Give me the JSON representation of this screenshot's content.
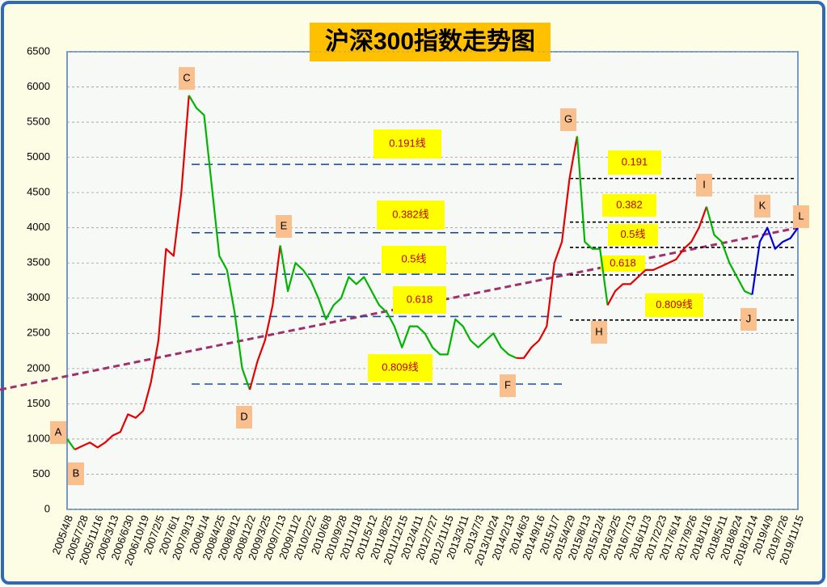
{
  "chart_data": {
    "type": "line",
    "title": "沪深300指数走势图",
    "ylim": [
      0,
      6500
    ],
    "yticks": [
      0,
      500,
      1000,
      1500,
      2000,
      2500,
      3000,
      3500,
      4000,
      4500,
      5000,
      5500,
      6000,
      6500
    ],
    "grid": true,
    "categories": [
      "2005/4/8",
      null,
      "2005/7/28",
      null,
      "2005/11/16",
      null,
      "2006/3/13",
      null,
      "2006/6/30",
      null,
      "2006/10/19",
      null,
      "2007/2/5",
      null,
      "2007/6/1",
      null,
      "2007/9/13",
      null,
      "2008/1/4",
      null,
      "2008/4/25",
      null,
      "2008/8/12",
      null,
      "2008/12/2",
      null,
      "2009/3/25",
      null,
      "2009/7/13",
      null,
      "2009/11/2",
      null,
      "2010/2/22",
      null,
      "2010/6/8",
      null,
      "2010/9/28",
      null,
      "2011/1/18",
      null,
      "2011/5/12",
      null,
      "2011/8/25",
      null,
      "2011/12/15",
      null,
      "2012/4/11",
      null,
      "2012/7/27",
      null,
      "2012/11/15",
      null,
      "2013/3/11",
      null,
      "2013/7/3",
      null,
      "2013/10/24",
      null,
      "2014/2/13",
      null,
      "2014/6/3",
      null,
      "2014/9/16",
      null,
      "2015/1/7",
      null,
      "2015/4/29",
      null,
      "2015/8/13",
      null,
      "2015/12/4",
      null,
      "2016/3/25",
      null,
      "2016/7/13",
      null,
      "2016/11/3",
      null,
      "2017/2/23",
      null,
      "2017/6/14",
      null,
      "2017/9/26",
      null,
      "2018/1/16",
      null,
      "2018/5/11",
      null,
      "2018/8/24",
      null,
      "2018/12/14",
      null,
      "2019/4/9",
      null,
      "2019/7/26",
      null,
      "2019/11/15"
    ],
    "series": [
      {
        "values": [
          1000,
          850,
          900,
          950,
          880,
          950,
          1050,
          1100,
          1350,
          1300,
          1400,
          1800,
          2400,
          3700,
          3600,
          4500,
          5880,
          5700,
          5600,
          4600,
          3600,
          3400,
          2800,
          2000,
          1700,
          2100,
          2400,
          2900,
          3750,
          3100,
          3500,
          3400,
          3250,
          3000,
          2700,
          2900,
          3000,
          3300,
          3200,
          3300,
          3100,
          2900,
          2800,
          2600,
          2300,
          2600,
          2600,
          2500,
          2300,
          2200,
          2200,
          2700,
          2600,
          2400,
          2300,
          2400,
          2500,
          2300,
          2200,
          2150,
          2150,
          2300,
          2400,
          2600,
          3500,
          3800,
          4700,
          5300,
          3800,
          3700,
          3700,
          2900,
          3100,
          3200,
          3200,
          3300,
          3400,
          3400,
          3450,
          3500,
          3550,
          3700,
          3800,
          4000,
          4300,
          3900,
          3800,
          3500,
          3300,
          3100,
          3050,
          3800,
          4000,
          3700,
          3800,
          3850,
          4000
        ],
        "colors": [
          "#00b400",
          "#e60000",
          "#e60000",
          "#e60000",
          "#e60000",
          "#e60000",
          "#e60000",
          "#e60000",
          "#e60000",
          "#e60000",
          "#e60000",
          "#e60000",
          "#e60000",
          "#e60000",
          "#e60000",
          "#e60000",
          "#00b400",
          "#00b400",
          "#00b400",
          "#00b400",
          "#00b400",
          "#00b400",
          "#00b400",
          "#00b400",
          "#e60000",
          "#e60000",
          "#e60000",
          "#e60000",
          "#00b400",
          "#00b400",
          "#00b400",
          "#00b400",
          "#00b400",
          "#00b400",
          "#00b400",
          "#00b400",
          "#00b400",
          "#00b400",
          "#00b400",
          "#00b400",
          "#00b400",
          "#00b400",
          "#00b400",
          "#00b400",
          "#00b400",
          "#00b400",
          "#00b400",
          "#00b400",
          "#00b400",
          "#00b400",
          "#00b400",
          "#00b400",
          "#00b400",
          "#00b400",
          "#00b400",
          "#00b400",
          "#00b400",
          "#00b400",
          "#00b400",
          "#e60000",
          "#e60000",
          "#e60000",
          "#e60000",
          "#e60000",
          "#e60000",
          "#e60000",
          "#e60000",
          "#00b400",
          "#00b400",
          "#00b400",
          "#00b400",
          "#e60000",
          "#e60000",
          "#e60000",
          "#e60000",
          "#e60000",
          "#e60000",
          "#e60000",
          "#e60000",
          "#e60000",
          "#e60000",
          "#e60000",
          "#e60000",
          "#e60000",
          "#00b400",
          "#00b400",
          "#00b400",
          "#00b400",
          "#00b400",
          "#00b400",
          "#0000dd",
          "#0000dd",
          "#0000dd",
          "#0000dd",
          "#0000dd",
          "#0000dd"
        ]
      }
    ],
    "trend_line": {
      "color": "#a0306a",
      "values": [
        1700,
        4000
      ]
    },
    "levels_left": {
      "color": "#1f4e9a",
      "levels": [
        {
          "label": "0.191线",
          "value": 4900
        },
        {
          "label": "0.382线",
          "value": 3930
        },
        {
          "label": "0.5线",
          "value": 3340
        },
        {
          "label": "0.618",
          "value": 2740
        },
        {
          "label": "0.809线",
          "value": 1780
        }
      ]
    },
    "levels_right": {
      "color": "#000000",
      "levels": [
        {
          "label": "0.191",
          "value": 4700
        },
        {
          "label": "0.382",
          "value": 4080
        },
        {
          "label": "0.5线",
          "value": 3720
        },
        {
          "label": "0.618",
          "value": 3330
        },
        {
          "label": "0.809线",
          "value": 2690
        }
      ]
    },
    "point_labels": [
      "A",
      "B",
      "C",
      "D",
      "E",
      "F",
      "G",
      "H",
      "I",
      "J",
      "K",
      "L"
    ]
  }
}
